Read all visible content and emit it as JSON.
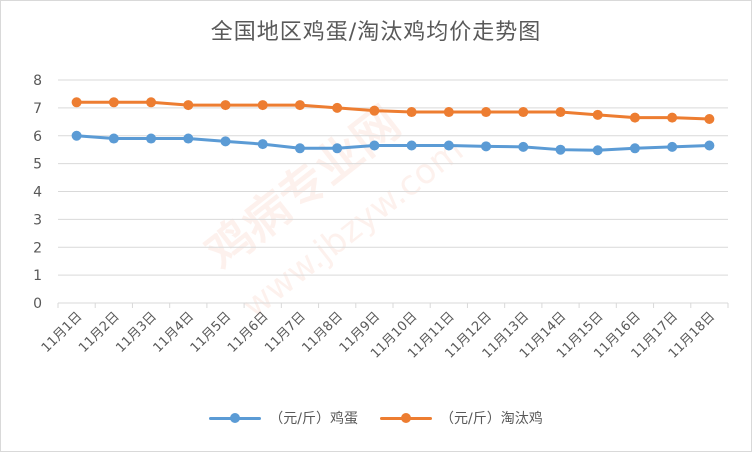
{
  "title": "全国地区鸡蛋/淘汰鸡均价走势图",
  "watermark": {
    "text1": "鸡病专业网",
    "text2": "www.jbzyw.com"
  },
  "chart_data": {
    "type": "line",
    "categories": [
      "11月1日",
      "11月2日",
      "11月3日",
      "11月4日",
      "11月5日",
      "11月6日",
      "11月7日",
      "11月8日",
      "11月9日",
      "11月10日",
      "11月11日",
      "11月12日",
      "11月13日",
      "11月14日",
      "11月15日",
      "11月16日",
      "11月17日",
      "11月18日"
    ],
    "series": [
      {
        "name": "（元/斤）鸡蛋",
        "color": "#5b9bd5",
        "values": [
          6.0,
          5.9,
          5.9,
          5.9,
          5.8,
          5.7,
          5.55,
          5.55,
          5.65,
          5.65,
          5.65,
          5.62,
          5.6,
          5.5,
          5.48,
          5.55,
          5.6,
          5.65
        ]
      },
      {
        "name": "（元/斤）淘汰鸡",
        "color": "#ed7d31",
        "values": [
          7.2,
          7.2,
          7.2,
          7.1,
          7.1,
          7.1,
          7.1,
          7.0,
          6.9,
          6.85,
          6.85,
          6.85,
          6.85,
          6.85,
          6.75,
          6.65,
          6.65,
          6.6
        ]
      }
    ],
    "ylim": [
      0,
      8
    ],
    "yticks": [
      0,
      1,
      2,
      3,
      4,
      5,
      6,
      7,
      8
    ],
    "grid": true,
    "legend": "bottom"
  }
}
